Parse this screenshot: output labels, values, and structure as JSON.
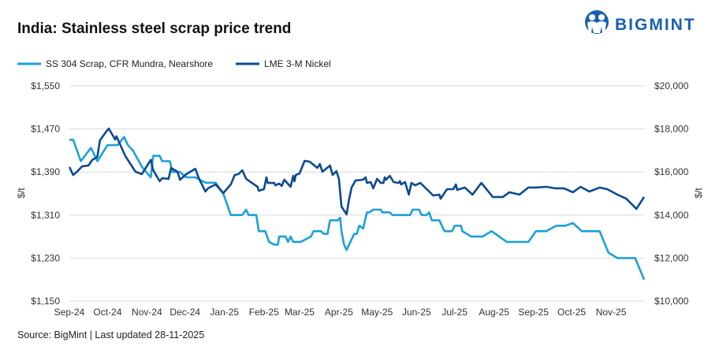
{
  "brand": {
    "name": "BIGMINT",
    "color": "#1b5fae"
  },
  "chart_data": {
    "type": "line",
    "title": "India: Stainless steel scrap price trend",
    "source": "Source: BigMint | Last updated 28-11-2025",
    "ylabel_left": "$/t",
    "ylabel_right": "$/t",
    "y_left": {
      "range": [
        1150,
        1550
      ],
      "ticks": [
        "$1,150",
        "$1,230",
        "$1,310",
        "$1,390",
        "$1,470",
        "$1,550"
      ],
      "tick_values": [
        1150,
        1230,
        1310,
        1390,
        1470,
        1550
      ]
    },
    "y_right": {
      "range": [
        10000,
        20000
      ],
      "ticks": [
        "$10,000",
        "$12,000",
        "$14,000",
        "$16,000",
        "$18,000",
        "$20,000"
      ],
      "tick_values": [
        10000,
        12000,
        14000,
        16000,
        18000,
        20000
      ]
    },
    "x_ticks": [
      "Sep-24",
      "Oct-24",
      "Nov-24",
      "Dec-24",
      "Jan-25",
      "Feb-25",
      "Mar-25",
      "Apr-25",
      "May-25",
      "Jun-25",
      "Jul-25",
      "Aug-25",
      "Sep-25",
      "Oct-25",
      "Nov-25"
    ],
    "x_tick_dates": [
      "2024-09-01",
      "2024-10-01",
      "2024-11-01",
      "2024-12-01",
      "2025-01-01",
      "2025-02-01",
      "2025-03-01",
      "2025-04-01",
      "2025-05-01",
      "2025-06-01",
      "2025-07-01",
      "2025-08-01",
      "2025-09-01",
      "2025-10-01",
      "2025-11-01"
    ],
    "x_range": [
      "2024-09-01",
      "2025-11-27"
    ],
    "grid": "horizontal",
    "legend_placement": "top-left",
    "series": [
      {
        "name": "SS 304 Scrap, CFR Mundra, Nearshore",
        "axis": "left",
        "color": "#1ea0d8",
        "points": [
          [
            "2024-09-01",
            1450
          ],
          [
            "2024-09-04",
            1450
          ],
          [
            "2024-09-10",
            1410
          ],
          [
            "2024-09-18",
            1435
          ],
          [
            "2024-09-23",
            1410
          ],
          [
            "2024-10-01",
            1440
          ],
          [
            "2024-10-09",
            1440
          ],
          [
            "2024-10-14",
            1455
          ],
          [
            "2024-10-17",
            1440
          ],
          [
            "2024-10-21",
            1430
          ],
          [
            "2024-10-28",
            1400
          ],
          [
            "2024-11-04",
            1380
          ],
          [
            "2024-11-06",
            1420
          ],
          [
            "2024-11-11",
            1420
          ],
          [
            "2024-11-13",
            1410
          ],
          [
            "2024-11-19",
            1410
          ],
          [
            "2024-11-21",
            1390
          ],
          [
            "2024-11-27",
            1390
          ],
          [
            "2024-12-02",
            1380
          ],
          [
            "2024-12-09",
            1380
          ],
          [
            "2024-12-17",
            1370
          ],
          [
            "2024-12-25",
            1370
          ],
          [
            "2024-12-31",
            1350
          ],
          [
            "2025-01-06",
            1310
          ],
          [
            "2025-01-15",
            1310
          ],
          [
            "2025-01-18",
            1320
          ],
          [
            "2025-01-20",
            1310
          ],
          [
            "2025-01-26",
            1310
          ],
          [
            "2025-01-28",
            1280
          ],
          [
            "2025-02-02",
            1280
          ],
          [
            "2025-02-05",
            1260
          ],
          [
            "2025-02-09",
            1255
          ],
          [
            "2025-02-12",
            1255
          ],
          [
            "2025-02-13",
            1270
          ],
          [
            "2025-02-18",
            1270
          ],
          [
            "2025-02-20",
            1260
          ],
          [
            "2025-02-22",
            1270
          ],
          [
            "2025-02-24",
            1260
          ],
          [
            "2025-03-02",
            1260
          ],
          [
            "2025-03-06",
            1265
          ],
          [
            "2025-03-10",
            1270
          ],
          [
            "2025-03-12",
            1280
          ],
          [
            "2025-03-18",
            1280
          ],
          [
            "2025-03-20",
            1275
          ],
          [
            "2025-03-23",
            1275
          ],
          [
            "2025-03-25",
            1300
          ],
          [
            "2025-03-31",
            1300
          ],
          [
            "2025-04-02",
            1305
          ],
          [
            "2025-04-03",
            1280
          ],
          [
            "2025-04-05",
            1255
          ],
          [
            "2025-04-07",
            1245
          ],
          [
            "2025-04-13",
            1275
          ],
          [
            "2025-04-15",
            1275
          ],
          [
            "2025-04-17",
            1290
          ],
          [
            "2025-04-20",
            1285
          ],
          [
            "2025-04-23",
            1315
          ],
          [
            "2025-04-25",
            1315
          ],
          [
            "2025-04-28",
            1320
          ],
          [
            "2025-05-04",
            1320
          ],
          [
            "2025-05-05",
            1315
          ],
          [
            "2025-05-11",
            1315
          ],
          [
            "2025-05-13",
            1310
          ],
          [
            "2025-05-27",
            1310
          ],
          [
            "2025-05-29",
            1320
          ],
          [
            "2025-06-03",
            1320
          ],
          [
            "2025-06-05",
            1310
          ],
          [
            "2025-06-09",
            1310
          ],
          [
            "2025-06-11",
            1315
          ],
          [
            "2025-06-13",
            1300
          ],
          [
            "2025-06-19",
            1300
          ],
          [
            "2025-06-23",
            1280
          ],
          [
            "2025-06-29",
            1280
          ],
          [
            "2025-07-01",
            1290
          ],
          [
            "2025-07-06",
            1290
          ],
          [
            "2025-07-07",
            1280
          ],
          [
            "2025-07-14",
            1270
          ],
          [
            "2025-07-23",
            1270
          ],
          [
            "2025-07-30",
            1280
          ],
          [
            "2025-08-11",
            1260
          ],
          [
            "2025-08-28",
            1260
          ],
          [
            "2025-09-03",
            1280
          ],
          [
            "2025-09-11",
            1280
          ],
          [
            "2025-09-19",
            1290
          ],
          [
            "2025-09-26",
            1290
          ],
          [
            "2025-10-02",
            1295
          ],
          [
            "2025-10-09",
            1280
          ],
          [
            "2025-10-15",
            1280
          ],
          [
            "2025-10-23",
            1280
          ],
          [
            "2025-10-30",
            1240
          ],
          [
            "2025-11-06",
            1230
          ],
          [
            "2025-11-20",
            1230
          ],
          [
            "2025-11-27",
            1190
          ]
        ]
      },
      {
        "name": "LME 3-M Nickel",
        "axis": "right",
        "color": "#0c4a90",
        "points": [
          [
            "2024-09-01",
            16230
          ],
          [
            "2024-09-04",
            15860
          ],
          [
            "2024-09-07",
            16010
          ],
          [
            "2024-09-11",
            16260
          ],
          [
            "2024-09-16",
            16300
          ],
          [
            "2024-09-19",
            16560
          ],
          [
            "2024-09-23",
            16700
          ],
          [
            "2024-09-25",
            17470
          ],
          [
            "2024-09-30",
            17880
          ],
          [
            "2024-10-02",
            18020
          ],
          [
            "2024-10-07",
            17510
          ],
          [
            "2024-10-08",
            17660
          ],
          [
            "2024-10-15",
            16740
          ],
          [
            "2024-10-23",
            16010
          ],
          [
            "2024-10-28",
            15900
          ],
          [
            "2024-11-04",
            16560
          ],
          [
            "2024-11-06",
            16080
          ],
          [
            "2024-11-11",
            15570
          ],
          [
            "2024-11-13",
            15710
          ],
          [
            "2024-11-18",
            15680
          ],
          [
            "2024-11-20",
            16190
          ],
          [
            "2024-11-25",
            16010
          ],
          [
            "2024-11-27",
            15640
          ],
          [
            "2024-12-02",
            15900
          ],
          [
            "2024-12-09",
            16150
          ],
          [
            "2024-12-12",
            15680
          ],
          [
            "2024-12-17",
            15090
          ],
          [
            "2024-12-19",
            15240
          ],
          [
            "2024-12-25",
            15420
          ],
          [
            "2024-12-31",
            15020
          ],
          [
            "2025-01-06",
            15420
          ],
          [
            "2025-01-09",
            15860
          ],
          [
            "2025-01-12",
            15900
          ],
          [
            "2025-01-15",
            16080
          ],
          [
            "2025-01-18",
            15680
          ],
          [
            "2025-01-27",
            15310
          ],
          [
            "2025-01-28",
            15130
          ],
          [
            "2025-02-01",
            15200
          ],
          [
            "2025-02-03",
            15750
          ],
          [
            "2025-02-04",
            15490
          ],
          [
            "2025-02-09",
            15490
          ],
          [
            "2025-02-10",
            15380
          ],
          [
            "2025-02-13",
            15460
          ],
          [
            "2025-02-15",
            15350
          ],
          [
            "2025-02-17",
            15640
          ],
          [
            "2025-02-22",
            15310
          ],
          [
            "2025-02-24",
            15820
          ],
          [
            "2025-02-25",
            15570
          ],
          [
            "2025-02-26",
            15860
          ],
          [
            "2025-03-01",
            15930
          ],
          [
            "2025-03-05",
            16520
          ],
          [
            "2025-03-09",
            16480
          ],
          [
            "2025-03-15",
            16190
          ],
          [
            "2025-03-17",
            16370
          ],
          [
            "2025-03-19",
            16010
          ],
          [
            "2025-03-25",
            16300
          ],
          [
            "2025-03-27",
            15860
          ],
          [
            "2025-03-30",
            16040
          ],
          [
            "2025-04-01",
            15680
          ],
          [
            "2025-04-03",
            14400
          ],
          [
            "2025-04-07",
            14030
          ],
          [
            "2025-04-09",
            14730
          ],
          [
            "2025-04-11",
            15280
          ],
          [
            "2025-04-14",
            15600
          ],
          [
            "2025-04-20",
            15640
          ],
          [
            "2025-04-22",
            15750
          ],
          [
            "2025-04-23",
            15490
          ],
          [
            "2025-04-26",
            15530
          ],
          [
            "2025-04-28",
            15240
          ],
          [
            "2025-05-01",
            15680
          ],
          [
            "2025-05-04",
            15490
          ],
          [
            "2025-05-06",
            15490
          ],
          [
            "2025-05-07",
            15750
          ],
          [
            "2025-05-08",
            15640
          ],
          [
            "2025-05-11",
            15820
          ],
          [
            "2025-05-14",
            15530
          ],
          [
            "2025-05-18",
            15490
          ],
          [
            "2025-05-19",
            15570
          ],
          [
            "2025-05-20",
            15420
          ],
          [
            "2025-05-23",
            15530
          ],
          [
            "2025-05-26",
            14950
          ],
          [
            "2025-05-28",
            15490
          ],
          [
            "2025-05-31",
            15380
          ],
          [
            "2025-06-04",
            15490
          ],
          [
            "2025-06-11",
            15090
          ],
          [
            "2025-06-14",
            14910
          ],
          [
            "2025-06-19",
            14950
          ],
          [
            "2025-06-20",
            14760
          ],
          [
            "2025-06-25",
            15200
          ],
          [
            "2025-06-30",
            15200
          ],
          [
            "2025-07-02",
            15420
          ],
          [
            "2025-07-03",
            15170
          ],
          [
            "2025-07-09",
            15280
          ],
          [
            "2025-07-15",
            14950
          ],
          [
            "2025-07-22",
            15490
          ],
          [
            "2025-07-31",
            14840
          ],
          [
            "2025-08-08",
            14840
          ],
          [
            "2025-08-13",
            15060
          ],
          [
            "2025-08-21",
            14950
          ],
          [
            "2025-08-28",
            15280
          ],
          [
            "2025-09-03",
            15280
          ],
          [
            "2025-09-11",
            15310
          ],
          [
            "2025-09-18",
            15240
          ],
          [
            "2025-09-25",
            15240
          ],
          [
            "2025-10-02",
            15060
          ],
          [
            "2025-10-08",
            15310
          ],
          [
            "2025-10-15",
            15090
          ],
          [
            "2025-10-23",
            15280
          ],
          [
            "2025-10-29",
            15200
          ],
          [
            "2025-11-06",
            14950
          ],
          [
            "2025-11-13",
            14760
          ],
          [
            "2025-11-21",
            14290
          ],
          [
            "2025-11-27",
            14840
          ]
        ]
      }
    ]
  }
}
